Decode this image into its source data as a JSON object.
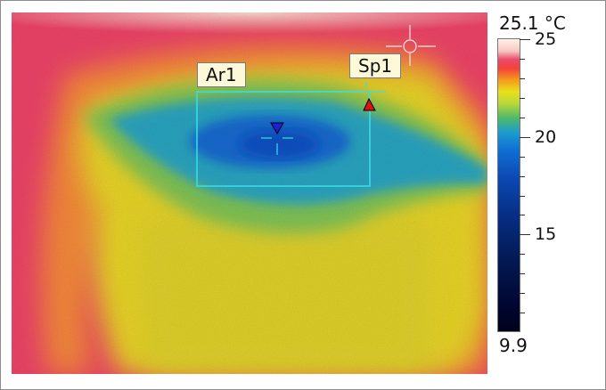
{
  "labels": {
    "area": "Ar1",
    "spot": "Sp1"
  },
  "scale": {
    "max_label": "25.1 °C",
    "min_label": "9.9",
    "ticks": [
      "25",
      "20",
      "15"
    ]
  },
  "colors": {
    "hot_edge": "#ea3f68",
    "warm": "#f0a43a",
    "mid": "#d9d62a",
    "cool": "#2ea6c9",
    "cold": "#1055c8",
    "marker_cold": "#1a22d8",
    "marker_hot": "#e01010",
    "crosshair": "#39e0e6"
  }
}
